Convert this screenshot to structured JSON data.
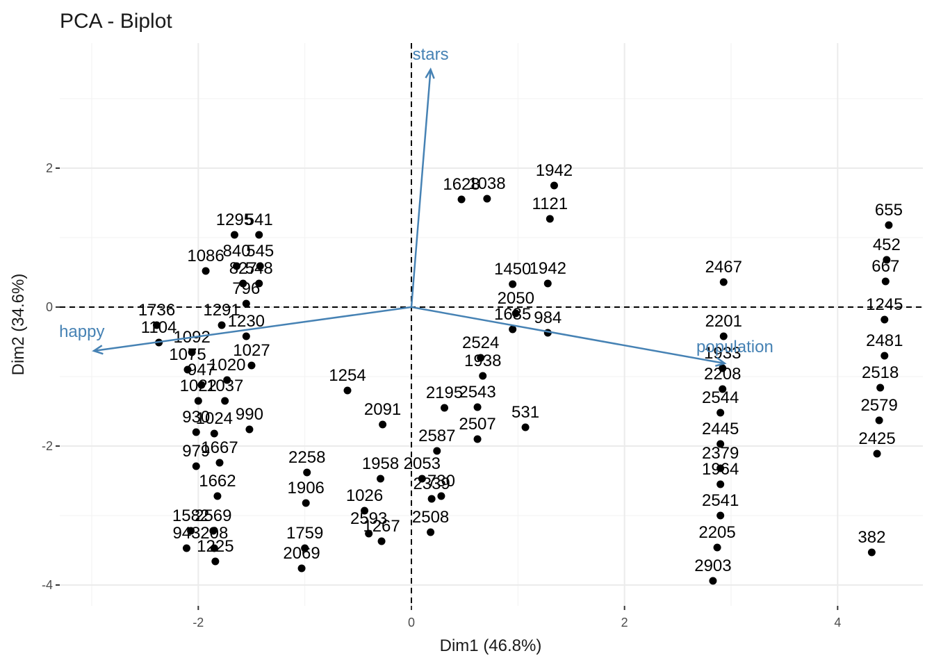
{
  "chart_data": {
    "type": "scatter",
    "title": "PCA - Biplot",
    "xlabel": "Dim1 (46.8%)",
    "ylabel": "Dim2 (34.6%)",
    "xlim": [
      -3.3,
      4.8
    ],
    "ylim": [
      -4.3,
      3.8
    ],
    "x_ticks": [
      -2,
      0,
      2,
      4
    ],
    "y_ticks": [
      -4,
      -2,
      0,
      2
    ],
    "grid": true,
    "reference_lines": {
      "x": 0,
      "y": 0,
      "style": "dashed"
    },
    "point_color": "#000000",
    "arrow_color": "#4682B4",
    "variables": [
      {
        "name": "stars",
        "x": 0.18,
        "y": 3.42
      },
      {
        "name": "happy",
        "x": -2.98,
        "y": -0.63
      },
      {
        "name": "population",
        "x": 2.94,
        "y": -0.81
      }
    ],
    "points": [
      {
        "x": -2.37,
        "y": -0.51,
        "label": "1104"
      },
      {
        "x": -2.39,
        "y": -0.26,
        "label": "1736"
      },
      {
        "x": -1.93,
        "y": 0.52,
        "label": "1086"
      },
      {
        "x": -1.66,
        "y": 1.04,
        "label": "1295"
      },
      {
        "x": -1.43,
        "y": 1.04,
        "label": "541"
      },
      {
        "x": -1.42,
        "y": 0.59,
        "label": "545"
      },
      {
        "x": -1.64,
        "y": 0.59,
        "label": "840"
      },
      {
        "x": -1.43,
        "y": 0.34,
        "label": "548"
      },
      {
        "x": -1.58,
        "y": 0.34,
        "label": "827"
      },
      {
        "x": -1.55,
        "y": 0.05,
        "label": "796"
      },
      {
        "x": -1.78,
        "y": -0.26,
        "label": "1291"
      },
      {
        "x": -1.55,
        "y": -0.42,
        "label": "1230"
      },
      {
        "x": -2.06,
        "y": -0.65,
        "label": "1092"
      },
      {
        "x": -1.5,
        "y": -0.84,
        "label": "1027"
      },
      {
        "x": -2.1,
        "y": -0.9,
        "label": "1075"
      },
      {
        "x": -1.97,
        "y": -1.12,
        "label": "947"
      },
      {
        "x": -1.73,
        "y": -1.05,
        "label": "1020"
      },
      {
        "x": -2.0,
        "y": -1.35,
        "label": "1022"
      },
      {
        "x": -1.75,
        "y": -1.35,
        "label": "1037"
      },
      {
        "x": -2.02,
        "y": -1.8,
        "label": "930"
      },
      {
        "x": -1.52,
        "y": -1.76,
        "label": "990"
      },
      {
        "x": -1.85,
        "y": -1.82,
        "label": "1024"
      },
      {
        "x": -2.02,
        "y": -2.29,
        "label": "979"
      },
      {
        "x": -1.8,
        "y": -2.24,
        "label": "1667"
      },
      {
        "x": -1.82,
        "y": -2.72,
        "label": "1662"
      },
      {
        "x": -2.07,
        "y": -3.22,
        "label": "1582"
      },
      {
        "x": -1.86,
        "y": -3.22,
        "label": "2569"
      },
      {
        "x": -2.11,
        "y": -3.47,
        "label": "943"
      },
      {
        "x": -1.85,
        "y": -3.47,
        "label": "208"
      },
      {
        "x": -1.84,
        "y": -3.66,
        "label": "1225"
      },
      {
        "x": -1.03,
        "y": -3.76,
        "label": "2069"
      },
      {
        "x": -1.0,
        "y": -3.47,
        "label": "1759"
      },
      {
        "x": -0.99,
        "y": -2.82,
        "label": "1906"
      },
      {
        "x": -0.98,
        "y": -2.38,
        "label": "2258"
      },
      {
        "x": -0.6,
        "y": -1.2,
        "label": "1254"
      },
      {
        "x": -0.44,
        "y": -2.93,
        "label": "1026"
      },
      {
        "x": -0.4,
        "y": -3.26,
        "label": "2593"
      },
      {
        "x": -0.28,
        "y": -3.37,
        "label": "1267"
      },
      {
        "x": -0.29,
        "y": -2.47,
        "label": "1958"
      },
      {
        "x": -0.27,
        "y": -1.69,
        "label": "2091"
      },
      {
        "x": 0.1,
        "y": -2.47,
        "label": "2053"
      },
      {
        "x": 0.18,
        "y": -3.24,
        "label": "2508"
      },
      {
        "x": 0.28,
        "y": -2.72,
        "label": "730"
      },
      {
        "x": 0.19,
        "y": -2.76,
        "label": "2339"
      },
      {
        "x": 0.24,
        "y": -2.07,
        "label": "2587"
      },
      {
        "x": 0.62,
        "y": -1.9,
        "label": "2507"
      },
      {
        "x": 0.31,
        "y": -1.45,
        "label": "2195"
      },
      {
        "x": 0.67,
        "y": -0.99,
        "label": "1938"
      },
      {
        "x": 0.62,
        "y": -1.44,
        "label": "2543"
      },
      {
        "x": 0.65,
        "y": -0.73,
        "label": "2524"
      },
      {
        "x": 1.07,
        "y": -1.73,
        "label": "531"
      },
      {
        "x": 1.28,
        "y": -0.37,
        "label": "984"
      },
      {
        "x": 0.95,
        "y": -0.32,
        "label": "1635"
      },
      {
        "x": 0.95,
        "y": 0.33,
        "label": "1450"
      },
      {
        "x": 1.28,
        "y": 0.34,
        "label": "1942"
      },
      {
        "x": 0.98,
        "y": -0.09,
        "label": "2050"
      },
      {
        "x": 1.3,
        "y": 1.27,
        "label": "1121"
      },
      {
        "x": 1.34,
        "y": 1.75,
        "label": "1942"
      },
      {
        "x": 0.71,
        "y": 1.56,
        "label": "1038"
      },
      {
        "x": 0.47,
        "y": 1.55,
        "label": "1628"
      },
      {
        "x": 2.83,
        "y": -3.94,
        "label": "2903"
      },
      {
        "x": 2.87,
        "y": -3.46,
        "label": "2205"
      },
      {
        "x": 2.9,
        "y": -3.0,
        "label": "2541"
      },
      {
        "x": 2.9,
        "y": -2.55,
        "label": "1964"
      },
      {
        "x": 2.9,
        "y": -2.32,
        "label": "2379"
      },
      {
        "x": 2.9,
        "y": -1.97,
        "label": "2445"
      },
      {
        "x": 2.9,
        "y": -1.52,
        "label": "2544"
      },
      {
        "x": 2.92,
        "y": -1.18,
        "label": "2208"
      },
      {
        "x": 2.92,
        "y": -0.88,
        "label": "1933"
      },
      {
        "x": 2.93,
        "y": -0.42,
        "label": "2201"
      },
      {
        "x": 2.93,
        "y": 0.36,
        "label": "2467"
      },
      {
        "x": 4.32,
        "y": -3.53,
        "label": "382"
      },
      {
        "x": 4.37,
        "y": -2.11,
        "label": "2425"
      },
      {
        "x": 4.39,
        "y": -1.63,
        "label": "2579"
      },
      {
        "x": 4.4,
        "y": -1.16,
        "label": "2518"
      },
      {
        "x": 4.44,
        "y": -0.7,
        "label": "2481"
      },
      {
        "x": 4.44,
        "y": -0.18,
        "label": "1245"
      },
      {
        "x": 4.45,
        "y": 0.37,
        "label": "667"
      },
      {
        "x": 4.46,
        "y": 0.68,
        "label": "452"
      },
      {
        "x": 4.48,
        "y": 1.18,
        "label": "655"
      }
    ]
  }
}
